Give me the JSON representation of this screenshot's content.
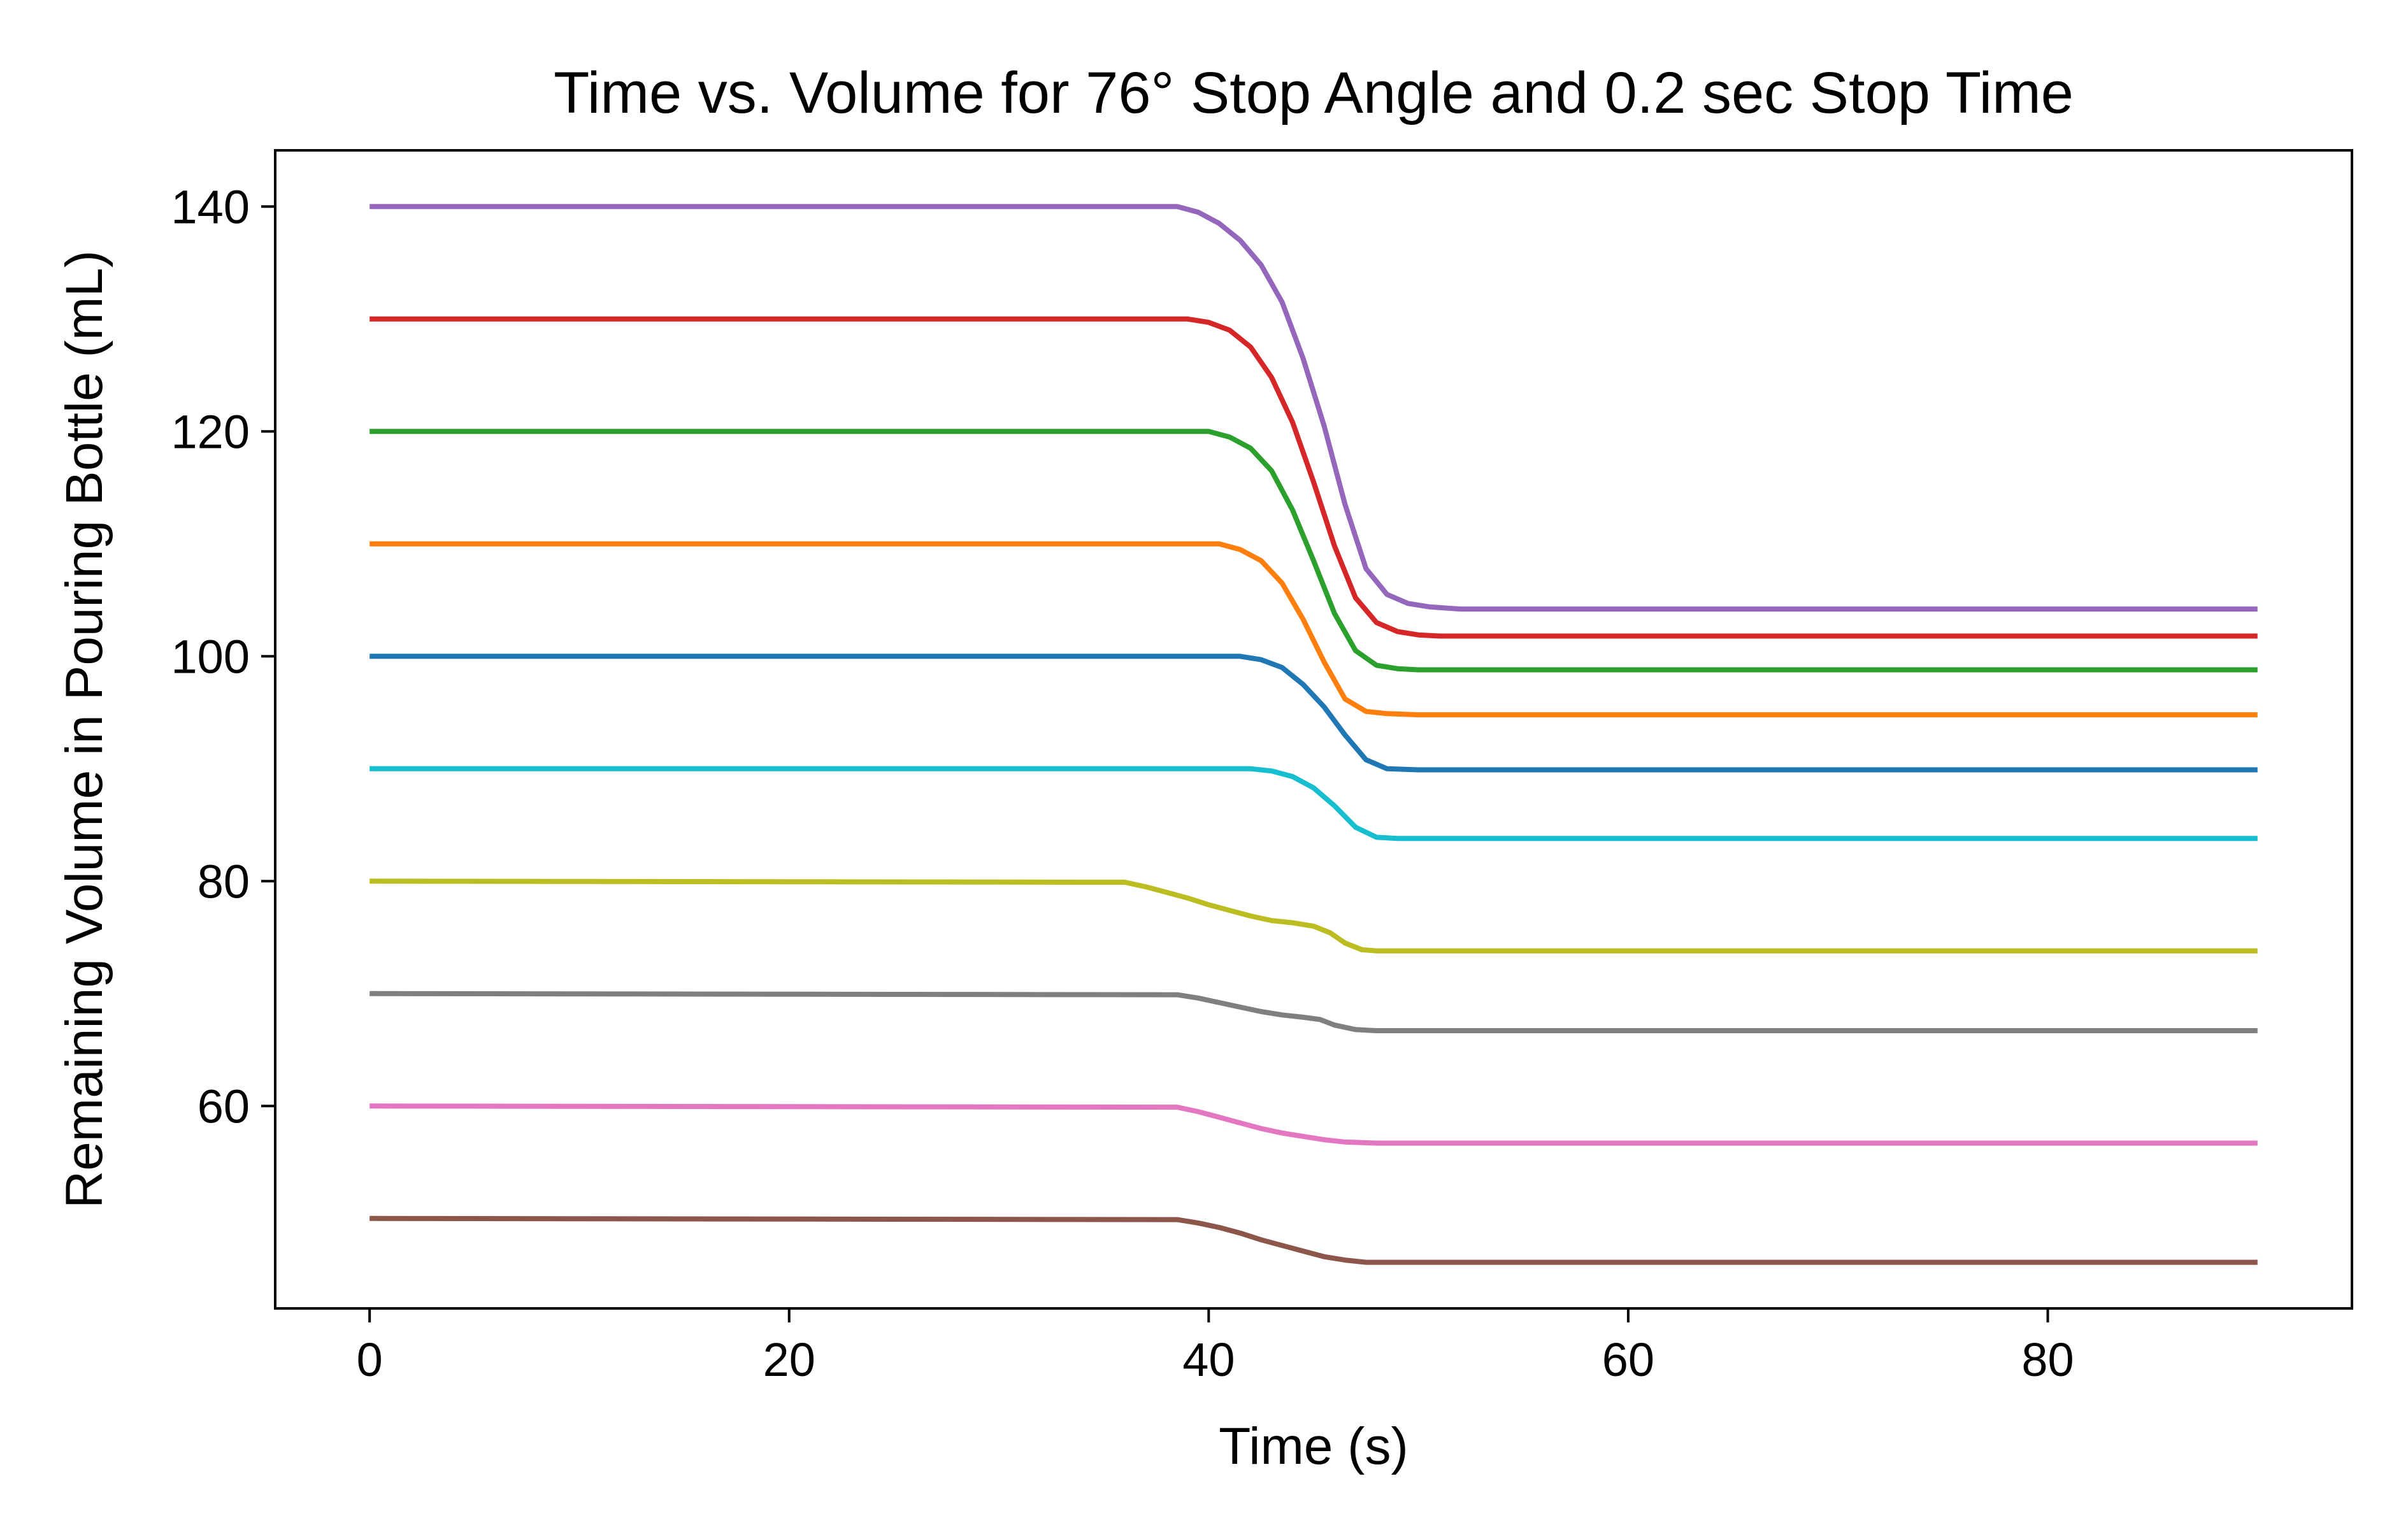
{
  "chart_data": {
    "type": "line",
    "title": "Time vs. Volume for 76° Stop Angle and 0.2 sec Stop Time",
    "xlabel": "Time (s)",
    "ylabel": "Remaining Volume in Pouring Bottle (mL)",
    "xlim": [
      -4.5,
      94.5
    ],
    "ylim": [
      42,
      145
    ],
    "xticks": [
      0,
      20,
      40,
      60,
      80
    ],
    "yticks": [
      60,
      80,
      100,
      120,
      140
    ],
    "grid": false,
    "legend": "none",
    "series": [
      {
        "color": "#9467bd",
        "points": [
          [
            0,
            140
          ],
          [
            38.5,
            140
          ],
          [
            39.5,
            139.5
          ],
          [
            40.5,
            138.5
          ],
          [
            41.5,
            137
          ],
          [
            42.5,
            134.8
          ],
          [
            43.5,
            131.5
          ],
          [
            44.5,
            126.5
          ],
          [
            45.5,
            120.5
          ],
          [
            46.5,
            113.5
          ],
          [
            47.5,
            107.8
          ],
          [
            48.5,
            105.5
          ],
          [
            49.5,
            104.7
          ],
          [
            50.5,
            104.4
          ],
          [
            52,
            104.2
          ],
          [
            90,
            104.2
          ]
        ]
      },
      {
        "color": "#d62728",
        "points": [
          [
            0,
            130
          ],
          [
            39,
            130
          ],
          [
            40,
            129.7
          ],
          [
            41,
            129
          ],
          [
            42,
            127.5
          ],
          [
            43,
            124.8
          ],
          [
            44,
            120.8
          ],
          [
            45,
            115.5
          ],
          [
            46,
            109.8
          ],
          [
            47,
            105.2
          ],
          [
            48,
            103
          ],
          [
            49,
            102.2
          ],
          [
            50,
            101.9
          ],
          [
            51,
            101.8
          ],
          [
            90,
            101.8
          ]
        ]
      },
      {
        "color": "#2ca02c",
        "points": [
          [
            0,
            120
          ],
          [
            40,
            120
          ],
          [
            41,
            119.5
          ],
          [
            42,
            118.5
          ],
          [
            43,
            116.5
          ],
          [
            44,
            113
          ],
          [
            45,
            108.5
          ],
          [
            46,
            103.8
          ],
          [
            47,
            100.5
          ],
          [
            48,
            99.2
          ],
          [
            49,
            98.9
          ],
          [
            50,
            98.8
          ],
          [
            90,
            98.8
          ]
        ]
      },
      {
        "color": "#ff7f0e",
        "points": [
          [
            0,
            110
          ],
          [
            40.5,
            110
          ],
          [
            41.5,
            109.5
          ],
          [
            42.5,
            108.5
          ],
          [
            43.5,
            106.5
          ],
          [
            44.5,
            103.3
          ],
          [
            45.5,
            99.5
          ],
          [
            46.5,
            96.2
          ],
          [
            47.5,
            95.1
          ],
          [
            48.5,
            94.9
          ],
          [
            50,
            94.8
          ],
          [
            90,
            94.8
          ]
        ]
      },
      {
        "color": "#1f77b4",
        "points": [
          [
            0,
            100
          ],
          [
            41.5,
            100
          ],
          [
            42.5,
            99.7
          ],
          [
            43.5,
            99
          ],
          [
            44.5,
            97.5
          ],
          [
            45.5,
            95.5
          ],
          [
            46.5,
            93
          ],
          [
            47.5,
            90.8
          ],
          [
            48.5,
            90
          ],
          [
            50,
            89.9
          ],
          [
            90,
            89.9
          ]
        ]
      },
      {
        "color": "#17becf",
        "points": [
          [
            0,
            90
          ],
          [
            42,
            90
          ],
          [
            43,
            89.8
          ],
          [
            44,
            89.3
          ],
          [
            45,
            88.3
          ],
          [
            46,
            86.7
          ],
          [
            47,
            84.8
          ],
          [
            48,
            83.9
          ],
          [
            49,
            83.8
          ],
          [
            90,
            83.8
          ]
        ]
      },
      {
        "color": "#bcbd22",
        "points": [
          [
            0,
            80
          ],
          [
            36,
            79.9
          ],
          [
            37,
            79.5
          ],
          [
            38,
            79
          ],
          [
            39,
            78.5
          ],
          [
            40,
            77.9
          ],
          [
            41,
            77.4
          ],
          [
            42,
            76.9
          ],
          [
            43,
            76.5
          ],
          [
            44,
            76.3
          ],
          [
            45,
            76
          ],
          [
            45.8,
            75.4
          ],
          [
            46.5,
            74.5
          ],
          [
            47.3,
            73.9
          ],
          [
            48,
            73.8
          ],
          [
            90,
            73.8
          ]
        ]
      },
      {
        "color": "#7f7f7f",
        "points": [
          [
            0,
            70
          ],
          [
            38.5,
            69.9
          ],
          [
            39.5,
            69.6
          ],
          [
            40.5,
            69.2
          ],
          [
            41.5,
            68.8
          ],
          [
            42.5,
            68.4
          ],
          [
            43.5,
            68.1
          ],
          [
            44.5,
            67.9
          ],
          [
            45.3,
            67.7
          ],
          [
            46,
            67.2
          ],
          [
            47,
            66.8
          ],
          [
            48,
            66.7
          ],
          [
            90,
            66.7
          ]
        ]
      },
      {
        "color": "#e377c2",
        "points": [
          [
            0,
            60
          ],
          [
            38.5,
            59.9
          ],
          [
            39.5,
            59.5
          ],
          [
            40.5,
            59
          ],
          [
            41.5,
            58.5
          ],
          [
            42.5,
            58
          ],
          [
            43.5,
            57.6
          ],
          [
            44.5,
            57.3
          ],
          [
            45.5,
            57
          ],
          [
            46.5,
            56.8
          ],
          [
            48,
            56.7
          ],
          [
            90,
            56.7
          ]
        ]
      },
      {
        "color": "#8c564b",
        "points": [
          [
            0,
            50
          ],
          [
            38.5,
            49.9
          ],
          [
            39.5,
            49.6
          ],
          [
            40.5,
            49.2
          ],
          [
            41.5,
            48.7
          ],
          [
            42.5,
            48.1
          ],
          [
            43.5,
            47.6
          ],
          [
            44.5,
            47.1
          ],
          [
            45.5,
            46.6
          ],
          [
            46.5,
            46.3
          ],
          [
            47.5,
            46.1
          ],
          [
            90,
            46.1
          ]
        ]
      }
    ]
  }
}
